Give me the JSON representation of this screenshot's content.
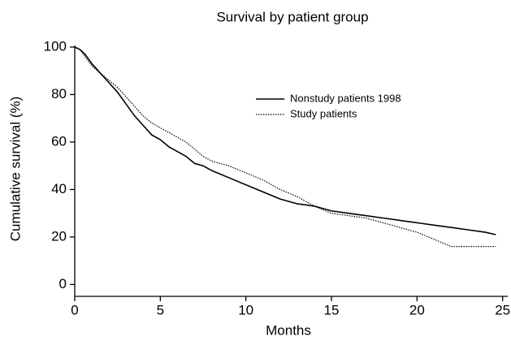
{
  "chart_data": {
    "type": "line",
    "title": "Survival by patient group",
    "x_label": "Months",
    "y_label": "Cumulative survival (%)",
    "x": [
      0,
      0.3,
      0.6,
      1,
      1.5,
      2,
      2.5,
      3,
      3.5,
      4,
      4.5,
      5,
      5.5,
      6,
      6.5,
      7,
      7.5,
      8,
      9,
      10,
      11,
      12,
      13,
      14,
      15,
      16,
      17,
      18,
      19,
      20,
      21,
      22,
      23,
      24,
      24.6
    ],
    "series": [
      {
        "name": "Nonstudy patients 1998",
        "color": "#000000",
        "style": "solid",
        "values": [
          100,
          99,
          97,
          93,
          89,
          85,
          81,
          76,
          71,
          67,
          63,
          61,
          58,
          56,
          54,
          51,
          50,
          48,
          45,
          42,
          39,
          36,
          34,
          33,
          31,
          30,
          29,
          28,
          27,
          26,
          25,
          24,
          23,
          22,
          21
        ]
      },
      {
        "name": "Study patients",
        "color": "#000000",
        "style": "dotted",
        "values": [
          100,
          99,
          96,
          92,
          89,
          86,
          83,
          79,
          75,
          71,
          68,
          66,
          64,
          62,
          60,
          57,
          54,
          52,
          50,
          47,
          44,
          40,
          37,
          33,
          30,
          29,
          28,
          26,
          24,
          22,
          19,
          16,
          16,
          16,
          16
        ]
      }
    ],
    "xlim": [
      0,
      25.3
    ],
    "ylim": [
      -5,
      100
    ],
    "xticks": [
      0,
      5,
      10,
      15,
      20,
      25
    ],
    "yticks": [
      0,
      20,
      40,
      60,
      80,
      100
    ],
    "grid": false,
    "legend": "upper right"
  }
}
